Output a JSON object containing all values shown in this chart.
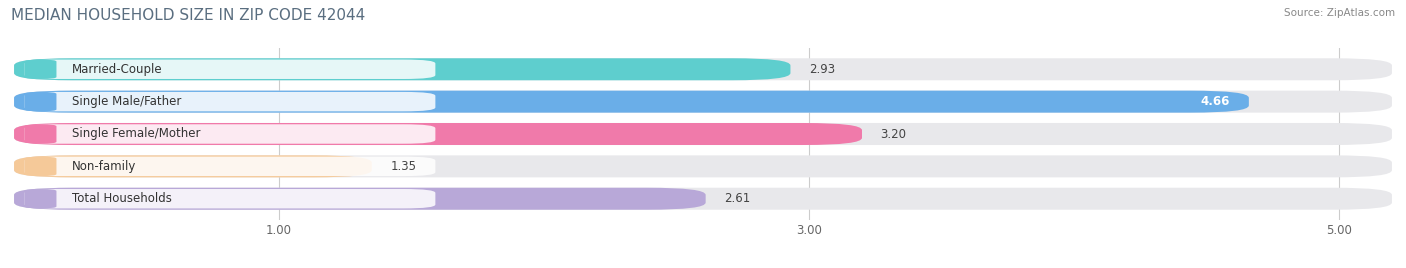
{
  "title": "MEDIAN HOUSEHOLD SIZE IN ZIP CODE 42044",
  "source": "Source: ZipAtlas.com",
  "categories": [
    "Married-Couple",
    "Single Male/Father",
    "Single Female/Mother",
    "Non-family",
    "Total Households"
  ],
  "values": [
    2.93,
    4.66,
    3.2,
    1.35,
    2.61
  ],
  "value_labels": [
    "2.93",
    "4.66",
    "3.20",
    "1.35",
    "2.61"
  ],
  "bar_colors": [
    "#5ecece",
    "#6aaee8",
    "#f07aaa",
    "#f5c999",
    "#b8a8d8"
  ],
  "bar_edge_colors": [
    "#3dbdbd",
    "#4a8fd4",
    "#e05090",
    "#e8a860",
    "#9888c0"
  ],
  "label_bg_colors": [
    "#5ecece",
    "#6aaee8",
    "#f07aaa",
    "#f5c999",
    "#b8a8d8"
  ],
  "xlim_min": 0,
  "xlim_max": 5.2,
  "xticks": [
    1.0,
    3.0,
    5.0
  ],
  "xtick_labels": [
    "1.00",
    "3.00",
    "5.00"
  ],
  "label_fontsize": 8.5,
  "value_fontsize": 8.5,
  "title_fontsize": 11,
  "background_color": "#ffffff",
  "bar_bg_color": "#e8e8eb",
  "bar_height": 0.68,
  "bar_gap": 1.0,
  "value_white_threshold": 4.5
}
